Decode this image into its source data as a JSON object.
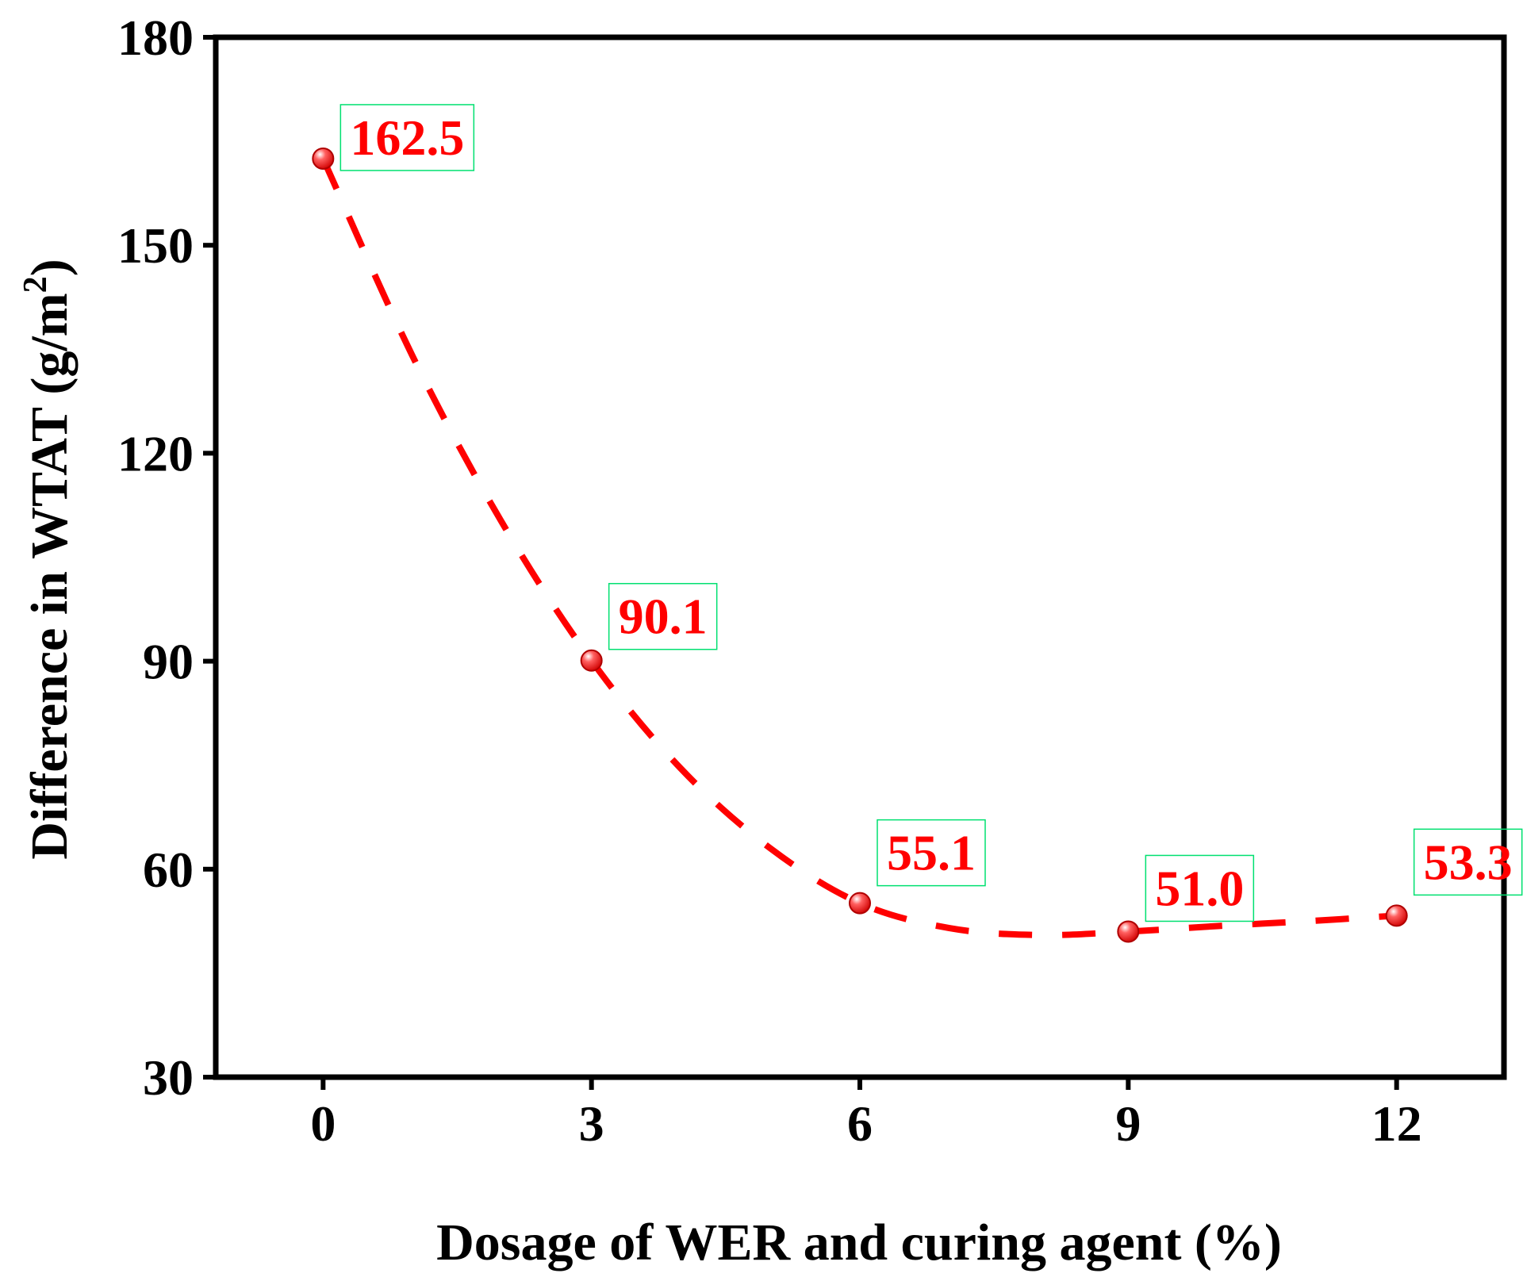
{
  "chart_data": {
    "type": "scatter",
    "title": "",
    "xlabel": "Dosage of WER and curing agent (%)",
    "ylabel": {
      "prefix": "Difference in WTAT (g/m",
      "superscript": "2",
      "suffix": ")"
    },
    "xlim": [
      -1.2,
      13.2
    ],
    "ylim": [
      30,
      180
    ],
    "xticks": [
      0,
      3,
      6,
      9,
      12
    ],
    "xtick_labels": [
      "0",
      "3",
      "6",
      "9",
      "12"
    ],
    "yticks": [
      30,
      60,
      90,
      120,
      150,
      180
    ],
    "ytick_labels": [
      "30",
      "60",
      "90",
      "120",
      "150",
      "180"
    ],
    "grid": false,
    "series": [
      {
        "name": "Difference in WTAT",
        "x": [
          0,
          3,
          6,
          9,
          12
        ],
        "values": [
          162.5,
          90.1,
          55.1,
          51.0,
          53.3
        ],
        "labels": [
          "162.5",
          "90.1",
          "55.1",
          "51.0",
          "53.3"
        ],
        "marker": "sphere",
        "line": "dashed fit"
      }
    ],
    "fit_curve": {
      "x": [
        0,
        1,
        2,
        3,
        4,
        5,
        6,
        7,
        8,
        9,
        10,
        11,
        12
      ],
      "values": [
        162.5,
        134.0,
        110.0,
        90.1,
        74.5,
        63.0,
        55.1,
        51.5,
        50.5,
        51.0,
        51.8,
        52.5,
        53.3
      ]
    },
    "colors": {
      "series": "#ff0000",
      "label_box": "#00e070",
      "axes": "#000000"
    }
  }
}
